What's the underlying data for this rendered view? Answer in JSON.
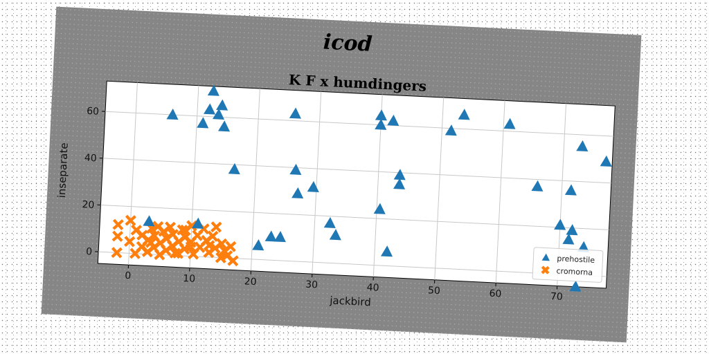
{
  "figure": {
    "suptitle": "icod"
  },
  "chart_data": {
    "type": "scatter",
    "title": "K F x humdingers",
    "xlabel": "jackbird",
    "ylabel": "inseparate",
    "xlim": [
      -5,
      78
    ],
    "ylim": [
      -5,
      73
    ],
    "xticks": [
      0,
      10,
      20,
      30,
      40,
      50,
      60,
      70
    ],
    "yticks": [
      0,
      20,
      40,
      60
    ],
    "grid": true,
    "legend": "lower-right",
    "series": [
      {
        "name": "prehostile",
        "marker": "triangle",
        "color": "#1f77b4",
        "points": [
          [
            6,
            60
          ],
          [
            11,
            57
          ],
          [
            12,
            63
          ],
          [
            12.5,
            71
          ],
          [
            13.5,
            61
          ],
          [
            14,
            65
          ],
          [
            14.5,
            56
          ],
          [
            16.5,
            38
          ],
          [
            26,
            63
          ],
          [
            26.5,
            39
          ],
          [
            27,
            29
          ],
          [
            29.5,
            32
          ],
          [
            32.5,
            17
          ],
          [
            33.5,
            12
          ],
          [
            21,
            6
          ],
          [
            23,
            10
          ],
          [
            24.5,
            10
          ],
          [
            3,
            14
          ],
          [
            11,
            14
          ],
          [
            40,
            64
          ],
          [
            40,
            60
          ],
          [
            42,
            62
          ],
          [
            40.5,
            24
          ],
          [
            43.5,
            39
          ],
          [
            43.5,
            35
          ],
          [
            42,
            6
          ],
          [
            51.5,
            59
          ],
          [
            53.5,
            66
          ],
          [
            61,
            63
          ],
          [
            66,
            37
          ],
          [
            70,
            21
          ],
          [
            71.5,
            15
          ],
          [
            71.5,
            36
          ],
          [
            72,
            19
          ],
          [
            73,
            55
          ],
          [
            74,
            12
          ],
          [
            77,
            49
          ],
          [
            73,
            -5
          ]
        ]
      },
      {
        "name": "cromorna",
        "marker": "x",
        "color": "#ff7f0e",
        "points": [
          [
            -2,
            12
          ],
          [
            -2,
            7
          ],
          [
            -2,
            0
          ],
          [
            0,
            14
          ],
          [
            0,
            5
          ],
          [
            1,
            10
          ],
          [
            1,
            0
          ],
          [
            2,
            3
          ],
          [
            2,
            8
          ],
          [
            3,
            6
          ],
          [
            3,
            1
          ],
          [
            3.5,
            11
          ],
          [
            4,
            3
          ],
          [
            4,
            8
          ],
          [
            4.5,
            12
          ],
          [
            5,
            5
          ],
          [
            5,
            0
          ],
          [
            5.5,
            10
          ],
          [
            6,
            2
          ],
          [
            6,
            7
          ],
          [
            6.5,
            12
          ],
          [
            7,
            4
          ],
          [
            7,
            9
          ],
          [
            8,
            1
          ],
          [
            8,
            6
          ],
          [
            8.5,
            11
          ],
          [
            9,
            3
          ],
          [
            9,
            8
          ],
          [
            10,
            13
          ],
          [
            10,
            6
          ],
          [
            10.5,
            1
          ],
          [
            11,
            9
          ],
          [
            11.5,
            4
          ],
          [
            12,
            12
          ],
          [
            12.5,
            7
          ],
          [
            13,
            2
          ],
          [
            13.5,
            9
          ],
          [
            14,
            4
          ],
          [
            14,
            13
          ],
          [
            15,
            6
          ],
          [
            15,
            0
          ],
          [
            15.5,
            3
          ],
          [
            16,
            1
          ],
          [
            16.5,
            5
          ],
          [
            17,
            -1
          ],
          [
            10,
            4
          ],
          [
            9,
            11
          ],
          [
            13,
            5
          ],
          [
            3.5,
            5
          ],
          [
            7.5,
            1
          ]
        ]
      }
    ]
  }
}
